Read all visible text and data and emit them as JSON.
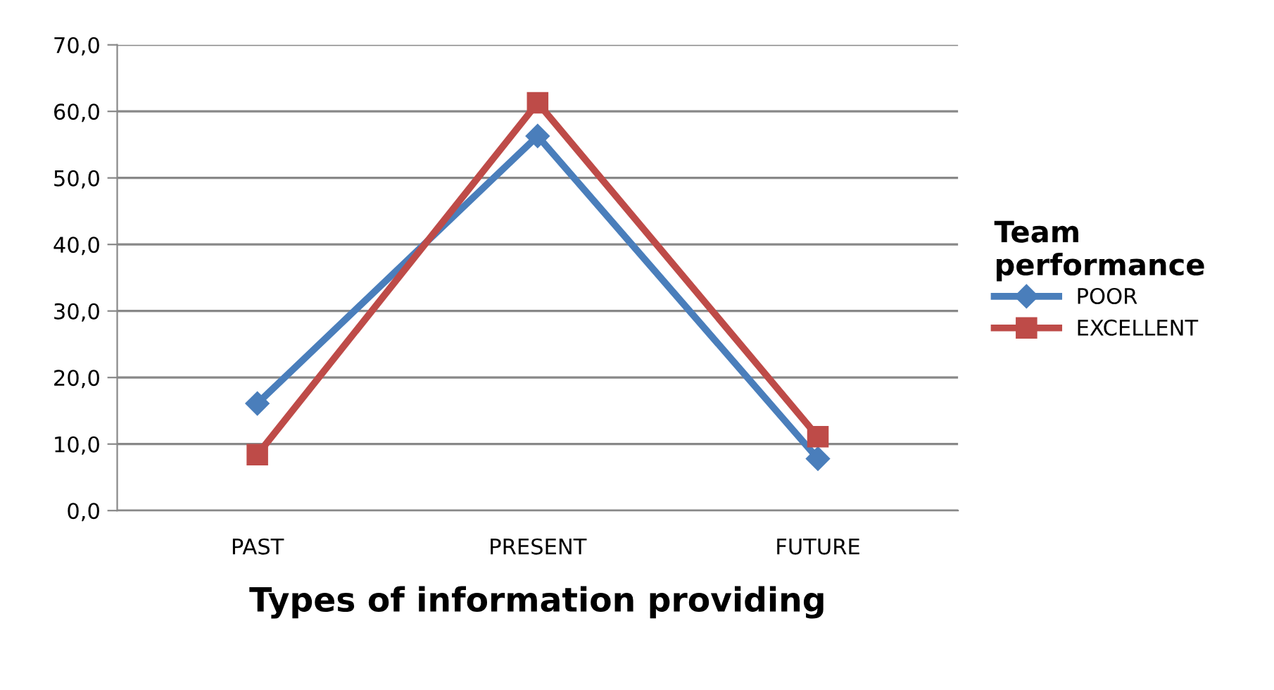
{
  "chart_data": {
    "type": "line",
    "xlabel": "Types of information providing",
    "legend_title": "Team performance",
    "categories": [
      "PAST",
      "PRESENT",
      "FUTURE"
    ],
    "series": [
      {
        "name": "POOR",
        "color": "#4a7ebb",
        "marker": "diamond",
        "values": [
          16.1,
          56.3,
          7.8
        ]
      },
      {
        "name": "EXCELLENT",
        "color": "#be4b48",
        "marker": "square",
        "values": [
          8.4,
          61.3,
          11.1
        ]
      }
    ],
    "ylim": [
      0,
      70
    ],
    "yticks": [
      {
        "value": 0,
        "label": "0,0"
      },
      {
        "value": 10,
        "label": "10,0"
      },
      {
        "value": 20,
        "label": "20,0"
      },
      {
        "value": 30,
        "label": "30,0"
      },
      {
        "value": 40,
        "label": "40,0"
      },
      {
        "value": 50,
        "label": "50,0"
      },
      {
        "value": 60,
        "label": "60,0"
      },
      {
        "value": 70,
        "label": "70,0"
      }
    ],
    "grid": "y",
    "legend": "right",
    "line_style": "solid"
  }
}
